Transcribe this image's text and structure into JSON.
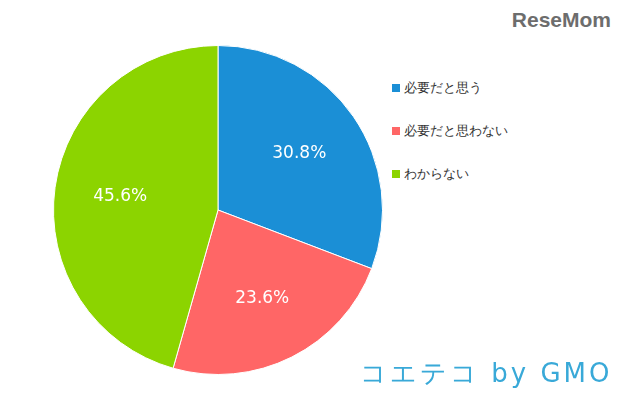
{
  "chart_data": {
    "type": "pie",
    "categories": [
      "必要だと思う",
      "必要だと思わない",
      "わからない"
    ],
    "values": [
      30.8,
      23.6,
      45.6
    ],
    "value_labels": [
      "30.8%",
      "23.6%",
      "45.6%"
    ],
    "colors": [
      "#1b8fd6",
      "#ff6666",
      "#8cd400"
    ],
    "data_labels": true,
    "legend": "right",
    "annotations": [
      "ReseMom",
      "コエテコ by GMO"
    ]
  }
}
